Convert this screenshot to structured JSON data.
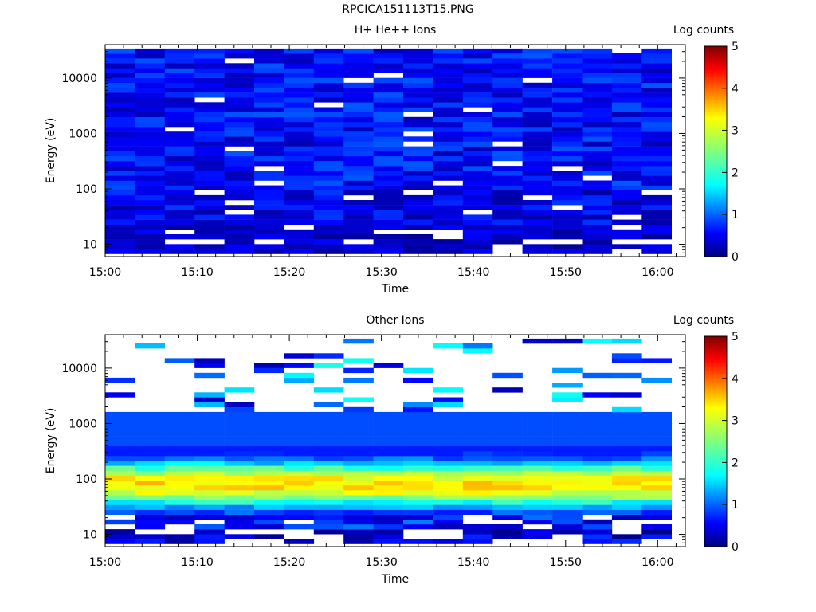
{
  "window_title": "RPCICA151113T15.PNG",
  "colors": {
    "colormap": [
      "#00007f",
      "#0000ff",
      "#007fff",
      "#00ffff",
      "#7fff7f",
      "#ffff00",
      "#ff7f00",
      "#ff0000",
      "#7f0000"
    ]
  },
  "chart_data": [
    {
      "type": "heatmap",
      "title": "H+ He++ Ions",
      "xlabel": "Time",
      "ylabel": "Energy (eV)",
      "x_ticks": [
        "15:00",
        "15:10",
        "15:20",
        "15:30",
        "15:40",
        "15:50",
        "16:00"
      ],
      "y_ticks": [
        "10",
        "100",
        "1000",
        "10000"
      ],
      "y_scale": "log",
      "ylim": [
        6,
        40000
      ],
      "xlim_minutes": [
        0,
        63
      ],
      "colorbar": {
        "label": "Log counts",
        "ticks": [
          "0",
          "1",
          "2",
          "3",
          "4",
          "5"
        ],
        "range": [
          0,
          5
        ]
      },
      "time_bins": 19,
      "energy_bins": 42,
      "intensity_log_counts": {
        "low_energy_below_30eV": 0.2,
        "30_to_100eV": 0.5,
        "above_100eV": 0.8
      },
      "empty_bins_fraction": 0.05
    },
    {
      "type": "heatmap",
      "title": "Other Ions",
      "xlabel": "Time",
      "ylabel": "Energy (eV)",
      "x_ticks": [
        "15:00",
        "15:10",
        "15:20",
        "15:30",
        "15:40",
        "15:50",
        "16:00"
      ],
      "y_ticks": [
        "10",
        "100",
        "1000",
        "10000"
      ],
      "y_scale": "log",
      "ylim": [
        6,
        40000
      ],
      "xlim_minutes": [
        0,
        63
      ],
      "colorbar": {
        "label": "Log counts",
        "ticks": [
          "0",
          "1",
          "2",
          "3",
          "4",
          "5"
        ],
        "range": [
          0,
          5
        ]
      },
      "time_bins": 19,
      "energy_bins": 42,
      "peak_energy_eV": 80,
      "peak_log_counts": 3.3,
      "main_band_eV": [
        20,
        1500
      ],
      "sparse_above_eV": 1500
    }
  ]
}
